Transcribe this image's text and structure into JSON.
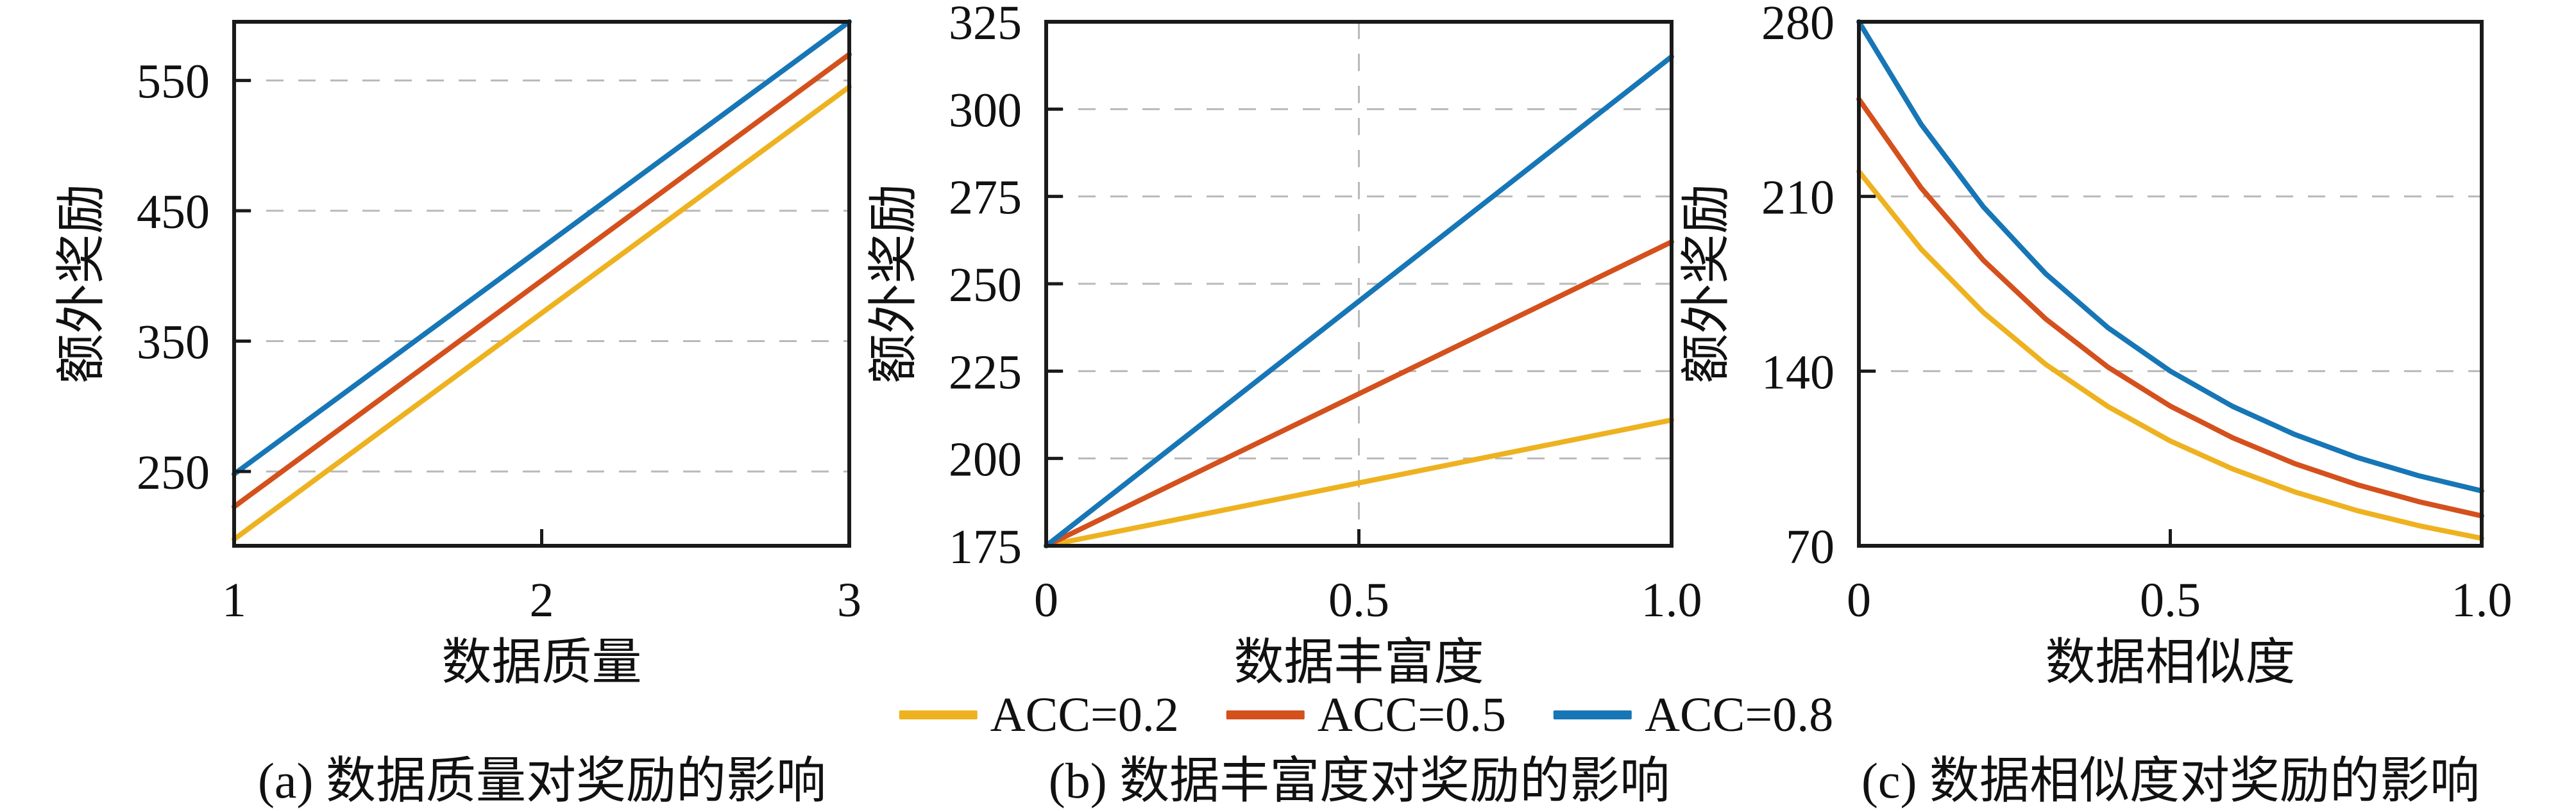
{
  "figure": {
    "background": "#ffffff",
    "frame_color": "#1a1a1a",
    "grid_color": "#b9b9b9",
    "legend": {
      "items": [
        {
          "label": "ACC=0.2",
          "color": "#EEB220"
        },
        {
          "label": "ACC=0.5",
          "color": "#D4501C"
        },
        {
          "label": "ACC=0.8",
          "color": "#1776B6"
        }
      ]
    },
    "captions": [
      {
        "label": "(a) 数据质量对奖励的影响"
      },
      {
        "label": "(b) 数据丰富度对奖励的影响"
      },
      {
        "label": "(c) 数据相似度对奖励的影响"
      }
    ]
  },
  "chart_data": [
    {
      "id": "a",
      "type": "line",
      "caption": "(a) 数据质量对奖励的影响",
      "xlabel": "数据质量",
      "ylabel": "额外奖励",
      "xlim": [
        1,
        3
      ],
      "ylim": [
        193,
        595
      ],
      "xticks": [
        {
          "v": 1,
          "label": "1"
        },
        {
          "v": 2,
          "label": "2"
        },
        {
          "v": 3,
          "label": "3"
        }
      ],
      "yticks": [
        {
          "v": 250,
          "label": "250"
        },
        {
          "v": 350,
          "label": "350"
        },
        {
          "v": 450,
          "label": "450"
        },
        {
          "v": 550,
          "label": "550"
        }
      ],
      "y_gridlines": [
        250,
        350,
        450,
        550
      ],
      "x_gridlines": [],
      "grid": true,
      "legend_position": "shared-bottom",
      "series": [
        {
          "name": "ACC=0.2",
          "color": "#EEB220",
          "x": [
            1,
            3
          ],
          "y": [
            198,
            545
          ]
        },
        {
          "name": "ACC=0.5",
          "color": "#D4501C",
          "x": [
            1,
            3
          ],
          "y": [
            223,
            570
          ]
        },
        {
          "name": "ACC=0.8",
          "color": "#1776B6",
          "x": [
            1,
            3
          ],
          "y": [
            248,
            595
          ]
        }
      ]
    },
    {
      "id": "b",
      "type": "line",
      "caption": "(b) 数据丰富度对奖励的影响",
      "xlabel": "数据丰富度",
      "ylabel": "额外奖励",
      "xlim": [
        0,
        1
      ],
      "ylim": [
        175,
        325
      ],
      "xticks": [
        {
          "v": 0,
          "label": "0"
        },
        {
          "v": 0.5,
          "label": "0.5"
        },
        {
          "v": 1,
          "label": "1.0"
        }
      ],
      "yticks": [
        {
          "v": 175,
          "label": "175"
        },
        {
          "v": 200,
          "label": "200"
        },
        {
          "v": 225,
          "label": "225"
        },
        {
          "v": 250,
          "label": "250"
        },
        {
          "v": 275,
          "label": "275"
        },
        {
          "v": 300,
          "label": "300"
        },
        {
          "v": 325,
          "label": "325"
        }
      ],
      "y_gridlines": [
        200,
        225,
        250,
        275,
        300
      ],
      "x_gridlines": [
        0.5
      ],
      "grid": true,
      "legend_position": "shared-bottom",
      "series": [
        {
          "name": "ACC=0.2",
          "color": "#EEB220",
          "x": [
            0,
            1
          ],
          "y": [
            175,
            211
          ]
        },
        {
          "name": "ACC=0.5",
          "color": "#D4501C",
          "x": [
            0,
            1
          ],
          "y": [
            175,
            262
          ]
        },
        {
          "name": "ACC=0.8",
          "color": "#1776B6",
          "x": [
            0,
            1
          ],
          "y": [
            175,
            315
          ]
        }
      ]
    },
    {
      "id": "c",
      "type": "line",
      "caption": "(c) 数据相似度对奖励的影响",
      "xlabel": "数据相似度",
      "ylabel": "额外奖励",
      "xlim": [
        0,
        1
      ],
      "ylim": [
        70,
        280
      ],
      "xticks": [
        {
          "v": 0,
          "label": "0"
        },
        {
          "v": 0.5,
          "label": "0.5"
        },
        {
          "v": 1,
          "label": "1.0"
        }
      ],
      "yticks": [
        {
          "v": 70,
          "label": "70"
        },
        {
          "v": 140,
          "label": "140"
        },
        {
          "v": 210,
          "label": "210"
        },
        {
          "v": 280,
          "label": "280"
        }
      ],
      "y_gridlines": [
        140,
        210
      ],
      "x_gridlines": [],
      "grid": true,
      "legend_position": "shared-bottom",
      "series": [
        {
          "name": "ACC=0.2",
          "color": "#EEB220",
          "x": [
            0,
            0.1,
            0.2,
            0.3,
            0.4,
            0.5,
            0.6,
            0.7,
            0.8,
            0.9,
            1.0
          ],
          "y": [
            220,
            188.9,
            163.5,
            142.7,
            125.8,
            112,
            100.8,
            91.6,
            84.1,
            78,
            73
          ]
        },
        {
          "name": "ACC=0.5",
          "color": "#D4501C",
          "x": [
            0,
            0.1,
            0.2,
            0.3,
            0.4,
            0.5,
            0.6,
            0.7,
            0.8,
            0.9,
            1.0
          ],
          "y": [
            249,
            213.4,
            184.4,
            160.9,
            141.6,
            126,
            113.3,
            102.9,
            94.5,
            87.6,
            82
          ]
        },
        {
          "name": "ACC=0.8",
          "color": "#1776B6",
          "x": [
            0,
            0.1,
            0.2,
            0.3,
            0.4,
            0.5,
            0.6,
            0.7,
            0.8,
            0.9,
            1.0
          ],
          "y": [
            280,
            238.9,
            205.8,
            179,
            157.4,
            140,
            125.9,
            114.6,
            105.4,
            98,
            92
          ]
        }
      ]
    }
  ]
}
